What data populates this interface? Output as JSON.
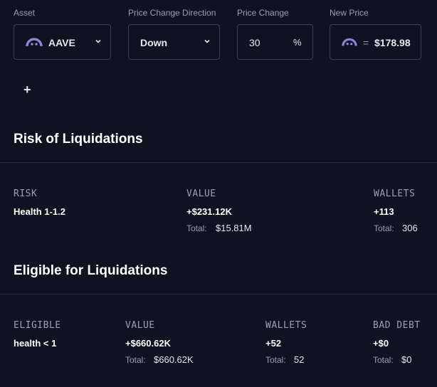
{
  "filters": {
    "asset": {
      "label": "Asset",
      "value": "AAVE",
      "icon": "aave-ghost-icon"
    },
    "direction": {
      "label": "Price Change Direction",
      "value": "Down"
    },
    "price_change": {
      "label": "Price Change",
      "value": "30",
      "unit": "%"
    },
    "new_price": {
      "label": "New Price",
      "equals": "=",
      "value": "$178.98"
    },
    "add_label": "+"
  },
  "risk_section": {
    "title": "Risk of Liquidations",
    "headers": {
      "risk": "RISK",
      "value": "VALUE",
      "wallets": "WALLETS"
    },
    "risk_text": "Health 1-1.2",
    "value": "+$231.12K",
    "value_total_label": "Total:",
    "value_total": "$15.81M",
    "wallets": "+113",
    "wallets_total_label": "Total:",
    "wallets_total": "306"
  },
  "eligible_section": {
    "title": "Eligible for Liquidations",
    "headers": {
      "eligible": "ELIGIBLE",
      "value": "VALUE",
      "wallets": "WALLETS",
      "bad_debt": "BAD DEBT"
    },
    "eligible_text": "health < 1",
    "value": "+$660.62K",
    "value_total_label": "Total:",
    "value_total": "$660.62K",
    "wallets": "+52",
    "wallets_total_label": "Total:",
    "wallets_total": "52",
    "bad_debt": "+$0",
    "bad_debt_total_label": "Total:",
    "bad_debt_total": "$0"
  },
  "colors": {
    "background": "#0f1220",
    "border": "#3a3f52",
    "accent_icon": "#8b85d9"
  }
}
